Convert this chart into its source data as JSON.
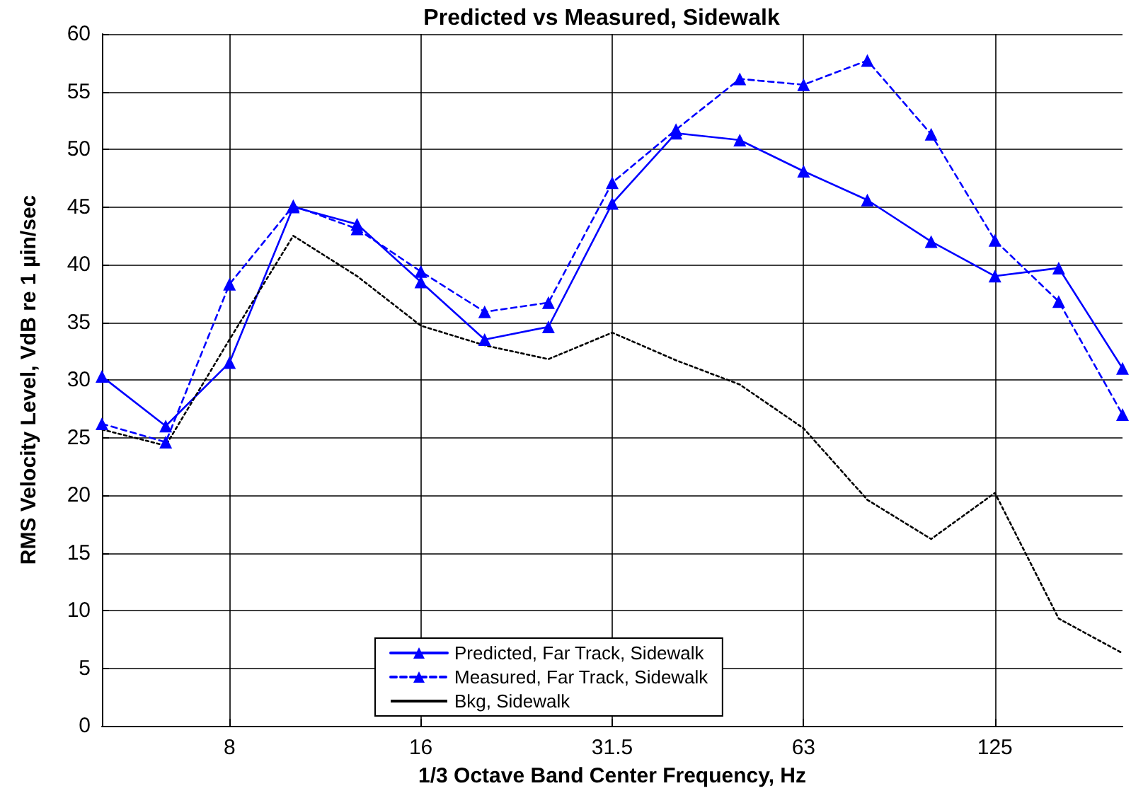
{
  "chart_data": {
    "type": "line",
    "title": "Predicted vs Measured, Sidewalk",
    "xlabel": "1/3 Octave Band Center Frequency, Hz",
    "ylabel": "RMS Velocity Level, VdB re 1 µin/sec",
    "categories": [
      null,
      null,
      "8",
      null,
      null,
      "16",
      null,
      null,
      "31.5",
      null,
      null,
      "63",
      null,
      null,
      "125",
      null,
      null
    ],
    "series": [
      {
        "name": "Predicted, Far Track, Sidewalk",
        "color": "#0000ff",
        "marker": "triangle",
        "line_style": "solid",
        "values": [
          30.3,
          26,
          31.5,
          45,
          43.5,
          38.5,
          33.5,
          34.6,
          45.3,
          51.4,
          50.8,
          48.1,
          45.6,
          42,
          39,
          39.7,
          31
        ]
      },
      {
        "name": "Measured, Far Track, Sidewalk",
        "color": "#0000ff",
        "marker": "triangle",
        "line_style": "dashed",
        "values": [
          26.2,
          24.6,
          38.3,
          45.1,
          43.1,
          39.4,
          35.9,
          36.7,
          47.1,
          51.7,
          56.1,
          55.6,
          57.7,
          51.3,
          42.1,
          36.8,
          27
        ]
      },
      {
        "name": "Bkg, Sidewalk",
        "color": "#000000",
        "marker": "none",
        "line_style": "dotted",
        "values": [
          25.7,
          24.3,
          33.5,
          42.5,
          39,
          34.7,
          33,
          31.8,
          34.1,
          31.7,
          29.6,
          25.8,
          19.6,
          16.2,
          20.2,
          9.3,
          6.3
        ]
      }
    ],
    "ylim": [
      0,
      60
    ],
    "yticks": [
      0,
      5,
      10,
      15,
      20,
      25,
      30,
      35,
      40,
      45,
      50,
      55,
      60
    ],
    "grid": true,
    "legend": "bottom"
  }
}
